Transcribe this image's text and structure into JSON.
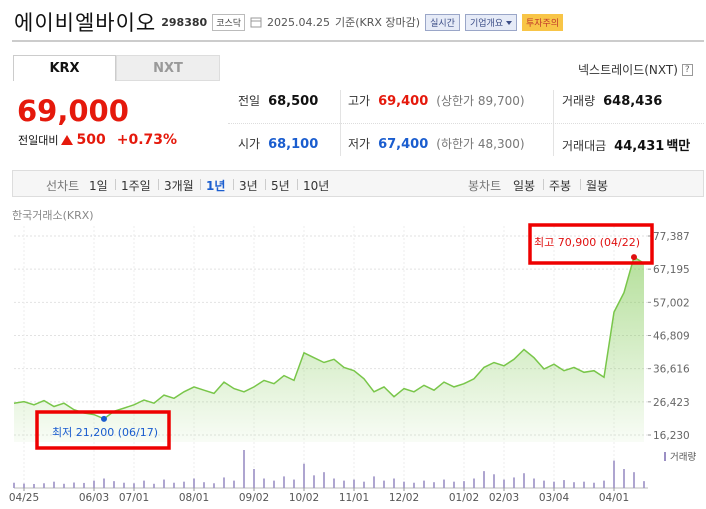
{
  "header": {
    "name": "에이비엘바이오",
    "code": "298380",
    "market": "코스닥",
    "date": "2025.04.25",
    "basis": "기준(KRX 장마감)",
    "buttons": [
      "실시간",
      "기업개요",
      "투자주의"
    ]
  },
  "tabs": [
    "KRX",
    "NXT"
  ],
  "nxt_link": "넥스트레이드(NXT)",
  "help": "?",
  "price": {
    "current": "69,000",
    "change_label": "전일대비",
    "change": "500",
    "change_pct": "+0.73%",
    "color": "#e5190c"
  },
  "summary": [
    [
      {
        "label": "전일",
        "value": "68,500",
        "color": "#111"
      },
      {
        "label": "고가",
        "value": "69,400",
        "note": "(상한가 89,700)",
        "color": "#e5190c"
      },
      {
        "label": "거래량",
        "value": "648,436",
        "color": "#111"
      }
    ],
    [
      {
        "label": "시가",
        "value": "68,100",
        "color": "#1a5dcf"
      },
      {
        "label": "저가",
        "value": "67,400",
        "note": "(하한가 48,300)",
        "color": "#1a5dcf"
      },
      {
        "label": "거래대금",
        "value": "44,431",
        "unit": "백만",
        "color": "#111"
      }
    ]
  ],
  "toolbar": {
    "line_label": "선차트",
    "line_periods": [
      "1일",
      "1주일",
      "3개월",
      "1년",
      "3년",
      "5년",
      "10년"
    ],
    "selected_period": 3,
    "candle_label": "봉차트",
    "candle_periods": [
      "일봉",
      "주봉",
      "월봉"
    ]
  },
  "chart_data": {
    "type": "line",
    "source": "한국거래소(KRX)",
    "categories": [
      null,
      "04/25",
      null,
      null,
      null,
      null,
      null,
      null,
      "06/03",
      null,
      null,
      null,
      "07/01",
      null,
      null,
      null,
      null,
      null,
      "08/01",
      null,
      null,
      null,
      null,
      null,
      "09/02",
      null,
      null,
      null,
      null,
      "10/02",
      null,
      null,
      null,
      null,
      "11/01",
      null,
      null,
      null,
      null,
      "12/02",
      null,
      null,
      null,
      null,
      null,
      "01/02",
      null,
      null,
      null,
      "02/03",
      null,
      null,
      null,
      null,
      "03/04",
      null,
      null,
      null,
      null,
      null,
      "04/01",
      null,
      null,
      null
    ],
    "values": [
      26000,
      26500,
      25500,
      26800,
      25000,
      26000,
      24000,
      23000,
      22500,
      21200,
      23500,
      24500,
      25500,
      27000,
      26000,
      28500,
      27500,
      29500,
      31000,
      30000,
      29000,
      32500,
      30500,
      29500,
      31000,
      33000,
      32000,
      34500,
      33000,
      41500,
      40000,
      38500,
      39500,
      37000,
      36000,
      33500,
      29500,
      31000,
      28000,
      30500,
      29500,
      31500,
      30000,
      32500,
      31000,
      32000,
      33500,
      37000,
      38500,
      37500,
      39500,
      42500,
      40000,
      36500,
      38000,
      36000,
      37000,
      35500,
      36000,
      34000,
      54000,
      60000,
      70900,
      69000
    ],
    "color": "#79c64a",
    "ylim": [
      16230,
      77387
    ],
    "yticks": [
      {
        "value": 16230,
        "label": "16,230"
      },
      {
        "value": 26423,
        "label": "26,423"
      },
      {
        "value": 36616,
        "label": "36,616"
      },
      {
        "value": 46809,
        "label": "46,809"
      },
      {
        "value": 57002,
        "label": "57,002"
      },
      {
        "value": 67195,
        "label": "67,195"
      },
      {
        "value": 77387,
        "label": "77,387"
      }
    ],
    "grid": true,
    "high_label": "최고 70,900 (04/22)",
    "high_color": "#e01010",
    "low_label": "최저 21,200 (06/17)",
    "low_color": "#1a5dcf",
    "volume": {
      "name": "거래량",
      "color": "#9b8fc4",
      "values": [
        500000,
        420000,
        380000,
        450000,
        600000,
        400000,
        520000,
        480000,
        700000,
        900000,
        650000,
        500000,
        450000,
        700000,
        400000,
        800000,
        500000,
        600000,
        900000,
        550000,
        450000,
        1000000,
        700000,
        3600000,
        1800000,
        900000,
        700000,
        1100000,
        800000,
        2300000,
        1200000,
        1500000,
        900000,
        700000,
        800000,
        600000,
        1100000,
        700000,
        900000,
        600000,
        500000,
        700000,
        550000,
        800000,
        600000,
        650000,
        900000,
        1600000,
        1300000,
        800000,
        1000000,
        1400000,
        900000,
        700000,
        600000,
        750000,
        550000,
        600000,
        500000,
        700000,
        2600000,
        1800000,
        1500000,
        650000
      ]
    }
  }
}
